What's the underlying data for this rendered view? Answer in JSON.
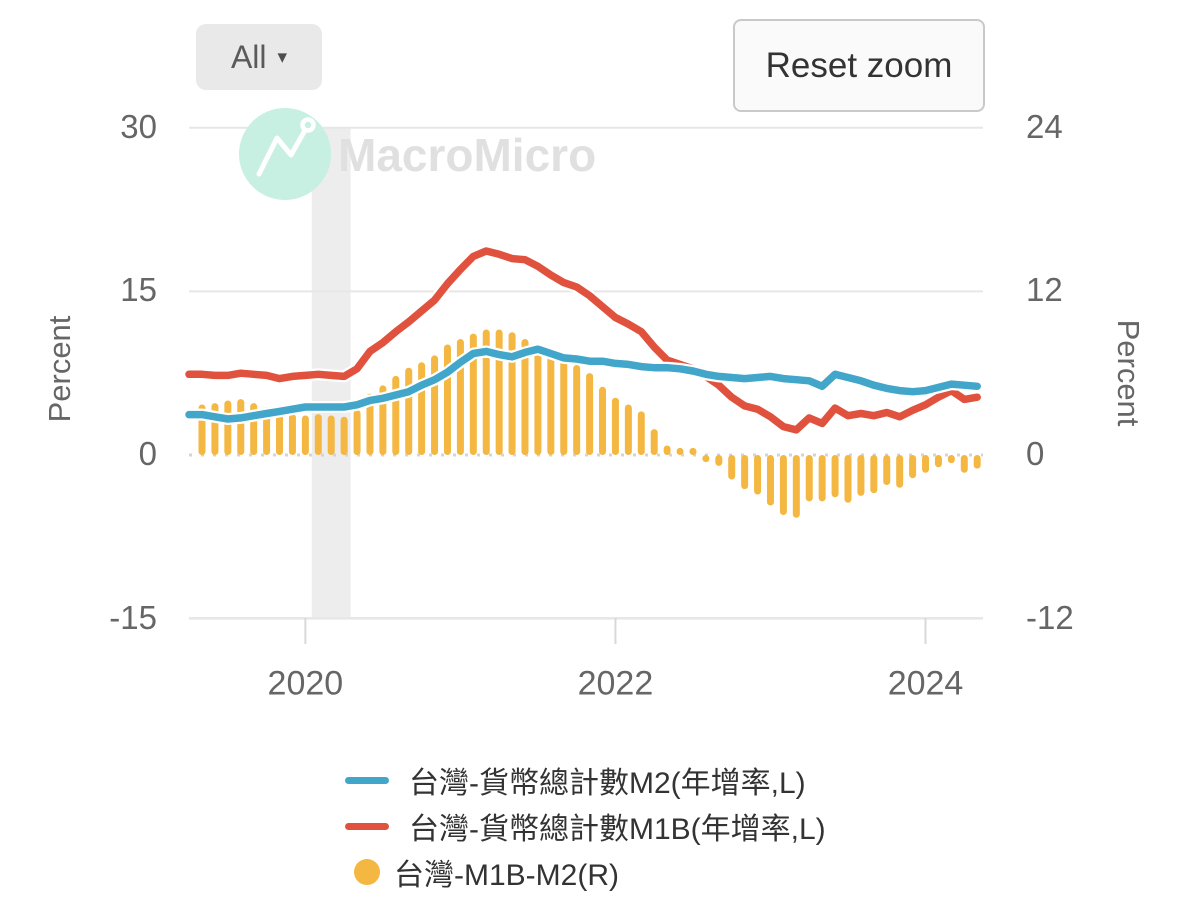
{
  "controls": {
    "range_selector": {
      "label": "All",
      "caret": "▾"
    },
    "reset_zoom_label": "Reset zoom"
  },
  "watermark": {
    "brand": "MacroMicro",
    "logo_color": "#c7efe2",
    "text_color": "#e0e0e0"
  },
  "chart_data": {
    "type": "mixed",
    "x": [
      "2019-05",
      "2019-06",
      "2019-07",
      "2019-08",
      "2019-09",
      "2019-10",
      "2019-11",
      "2019-12",
      "2020-01",
      "2020-02",
      "2020-03",
      "2020-04",
      "2020-05",
      "2020-06",
      "2020-07",
      "2020-08",
      "2020-09",
      "2020-10",
      "2020-11",
      "2020-12",
      "2021-01",
      "2021-02",
      "2021-03",
      "2021-04",
      "2021-05",
      "2021-06",
      "2021-07",
      "2021-08",
      "2021-09",
      "2021-10",
      "2021-11",
      "2021-12",
      "2022-01",
      "2022-02",
      "2022-03",
      "2022-04",
      "2022-05",
      "2022-06",
      "2022-07",
      "2022-08",
      "2022-09",
      "2022-10",
      "2022-11",
      "2022-12",
      "2023-01",
      "2023-02",
      "2023-03",
      "2023-04",
      "2023-05",
      "2023-06",
      "2023-07",
      "2023-08",
      "2023-09",
      "2023-10",
      "2023-11",
      "2023-12",
      "2024-01",
      "2024-02",
      "2024-03",
      "2024-04",
      "2024-05"
    ],
    "series": [
      {
        "name": "台灣-貨幣總計數M2(年增率,L)",
        "type": "line",
        "axis": "left",
        "color": "#41a6c9",
        "values": [
          3.7,
          3.5,
          3.3,
          3.4,
          3.6,
          3.8,
          4.0,
          4.2,
          4.4,
          4.4,
          4.4,
          4.4,
          4.6,
          5.0,
          5.2,
          5.5,
          5.8,
          6.4,
          6.9,
          7.6,
          8.5,
          9.3,
          9.5,
          9.2,
          9.0,
          9.4,
          9.7,
          9.3,
          8.9,
          8.8,
          8.6,
          8.6,
          8.4,
          8.3,
          8.1,
          8.0,
          8.0,
          7.9,
          7.7,
          7.4,
          7.2,
          7.1,
          7.0,
          7.1,
          7.2,
          7.0,
          6.9,
          6.8,
          6.3,
          7.4,
          7.1,
          6.8,
          6.4,
          6.1,
          5.9,
          5.8,
          5.9,
          6.2,
          6.5,
          6.4,
          6.3
        ]
      },
      {
        "name": "台灣-貨幣總計數M1B(年增率,L)",
        "type": "line",
        "axis": "left",
        "color": "#e0523e",
        "values": [
          7.4,
          7.3,
          7.3,
          7.5,
          7.4,
          7.3,
          7.0,
          7.2,
          7.3,
          7.4,
          7.3,
          7.2,
          7.9,
          9.5,
          10.3,
          11.3,
          12.2,
          13.2,
          14.2,
          15.7,
          17.0,
          18.2,
          18.7,
          18.4,
          18.0,
          17.9,
          17.3,
          16.5,
          15.8,
          15.4,
          14.6,
          13.6,
          12.6,
          12.0,
          11.3,
          9.9,
          8.7,
          8.3,
          7.9,
          7.2,
          6.4,
          5.3,
          4.5,
          4.2,
          3.5,
          2.6,
          2.3,
          3.4,
          2.9,
          4.3,
          3.6,
          3.8,
          3.6,
          3.9,
          3.5,
          4.1,
          4.6,
          5.3,
          5.9,
          5.1,
          5.3
        ]
      },
      {
        "name": "台灣-M1B-M2(R)",
        "type": "bar",
        "axis": "right",
        "color": "#f3b742",
        "values": [
          3.7,
          3.8,
          4.0,
          4.1,
          3.8,
          3.5,
          3.0,
          3.0,
          2.9,
          3.0,
          2.9,
          2.8,
          3.3,
          4.5,
          5.1,
          5.8,
          6.4,
          6.8,
          7.3,
          8.1,
          8.5,
          8.9,
          9.2,
          9.2,
          9.0,
          8.5,
          7.6,
          7.2,
          6.9,
          6.6,
          6.0,
          5.0,
          4.2,
          3.7,
          3.2,
          1.9,
          0.7,
          0.4,
          0.2,
          -0.2,
          -0.8,
          -1.8,
          -2.5,
          -2.9,
          -3.7,
          -4.4,
          -4.6,
          -3.4,
          -3.4,
          -3.1,
          -3.5,
          -3.0,
          -2.8,
          -2.2,
          -2.4,
          -1.7,
          -1.3,
          -0.9,
          -0.6,
          -1.3,
          -1.0
        ]
      }
    ],
    "left_axis": {
      "title": "Percent",
      "ticks": [
        "30",
        "15",
        "0",
        "-15"
      ],
      "tick_values": [
        30,
        15,
        0,
        -15
      ],
      "range": [
        -15,
        30
      ]
    },
    "right_axis": {
      "title": "Percent",
      "ticks": [
        "24",
        "12",
        "0",
        "-12"
      ],
      "tick_values": [
        24,
        12,
        0,
        -12
      ],
      "range": [
        -12,
        24
      ]
    },
    "x_axis": {
      "tick_labels": [
        "2020",
        "2022",
        "2024"
      ],
      "tick_months": [
        "2020-01",
        "2022-01",
        "2024-01"
      ]
    },
    "recession_band": {
      "from": "2020-02",
      "to": "2020-04",
      "color": "#ededed"
    },
    "grid": true,
    "grid_color": "#e7e7e7",
    "zero_line_color": "#d4d4d4",
    "axis_text_color": "#666666",
    "legend_position": "bottom"
  }
}
